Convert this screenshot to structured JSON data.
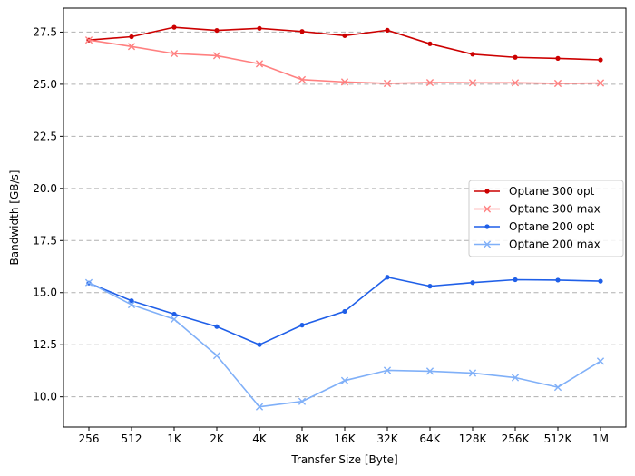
{
  "chart_data": {
    "type": "line",
    "title": "",
    "xlabel": "Transfer Size [Byte]",
    "ylabel": "Bandwidth [GB/s]",
    "categories": [
      "256",
      "512",
      "1K",
      "2K",
      "4K",
      "8K",
      "16K",
      "32K",
      "64K",
      "128K",
      "256K",
      "512K",
      "1M"
    ],
    "ylim": [
      8.55,
      28.65
    ],
    "yticks": [
      10.0,
      12.5,
      15.0,
      17.5,
      20.0,
      22.5,
      25.0,
      27.5
    ],
    "ytick_labels": [
      "10.0",
      "12.5",
      "15.0",
      "17.5",
      "20.0",
      "22.5",
      "25.0",
      "27.5"
    ],
    "grid": "y-dashed",
    "legend_position": "center-right",
    "series": [
      {
        "name": "Optane 300 opt",
        "color": "#cc0000",
        "marker": "dot",
        "values": [
          27.12,
          27.28,
          27.73,
          27.58,
          27.68,
          27.53,
          27.33,
          27.59,
          26.94,
          26.44,
          26.29,
          26.24,
          26.17
        ]
      },
      {
        "name": "Optane 300 max",
        "color": "#ff8080",
        "marker": "x",
        "values": [
          27.12,
          26.81,
          26.47,
          26.37,
          25.98,
          25.22,
          25.11,
          25.04,
          25.08,
          25.07,
          25.07,
          25.04,
          25.06
        ]
      },
      {
        "name": "Optane 200 opt",
        "color": "#1f5fe8",
        "marker": "dot",
        "values": [
          15.46,
          14.61,
          13.97,
          13.37,
          12.5,
          13.44,
          14.1,
          15.74,
          15.31,
          15.48,
          15.62,
          15.6,
          15.55
        ]
      },
      {
        "name": "Optane 200 max",
        "color": "#80b0f8",
        "marker": "x",
        "values": [
          15.48,
          14.42,
          13.72,
          11.98,
          9.52,
          9.78,
          10.78,
          11.27,
          11.23,
          11.14,
          10.92,
          10.46,
          11.71
        ]
      }
    ]
  }
}
